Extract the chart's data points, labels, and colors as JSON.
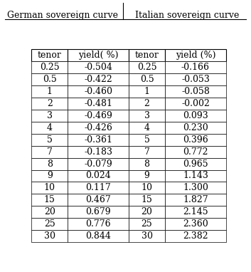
{
  "col_header_left": "German sovereign curve",
  "col_header_right": "Italian sovereign curve",
  "header_left_col1": "tenor",
  "header_left_col2": "yield( %)",
  "header_right_col1": "tenor",
  "header_right_col2": "yield (%)",
  "tenors": [
    "0.25",
    "0.5",
    "1",
    "2",
    "3",
    "4",
    "5",
    "7",
    "8",
    "9",
    "10",
    "15",
    "20",
    "25",
    "30"
  ],
  "german_yields": [
    "-0.504",
    "-0.422",
    "-0.460",
    "-0.481",
    "-0.469",
    "-0.426",
    "-0.361",
    "-0.183",
    "-0.079",
    "0.024",
    "0.117",
    "0.467",
    "0.679",
    "0.776",
    "0.844"
  ],
  "italian_yields": [
    "-0.166",
    "-0.053",
    "-0.058",
    "-0.002",
    "0.093",
    "0.230",
    "0.396",
    "0.772",
    "0.965",
    "1.143",
    "1.300",
    "1.827",
    "2.145",
    "2.360",
    "2.382"
  ],
  "figsize": [
    3.53,
    3.82
  ],
  "dpi": 100,
  "fontsize": 9,
  "header_fontsize": 9
}
